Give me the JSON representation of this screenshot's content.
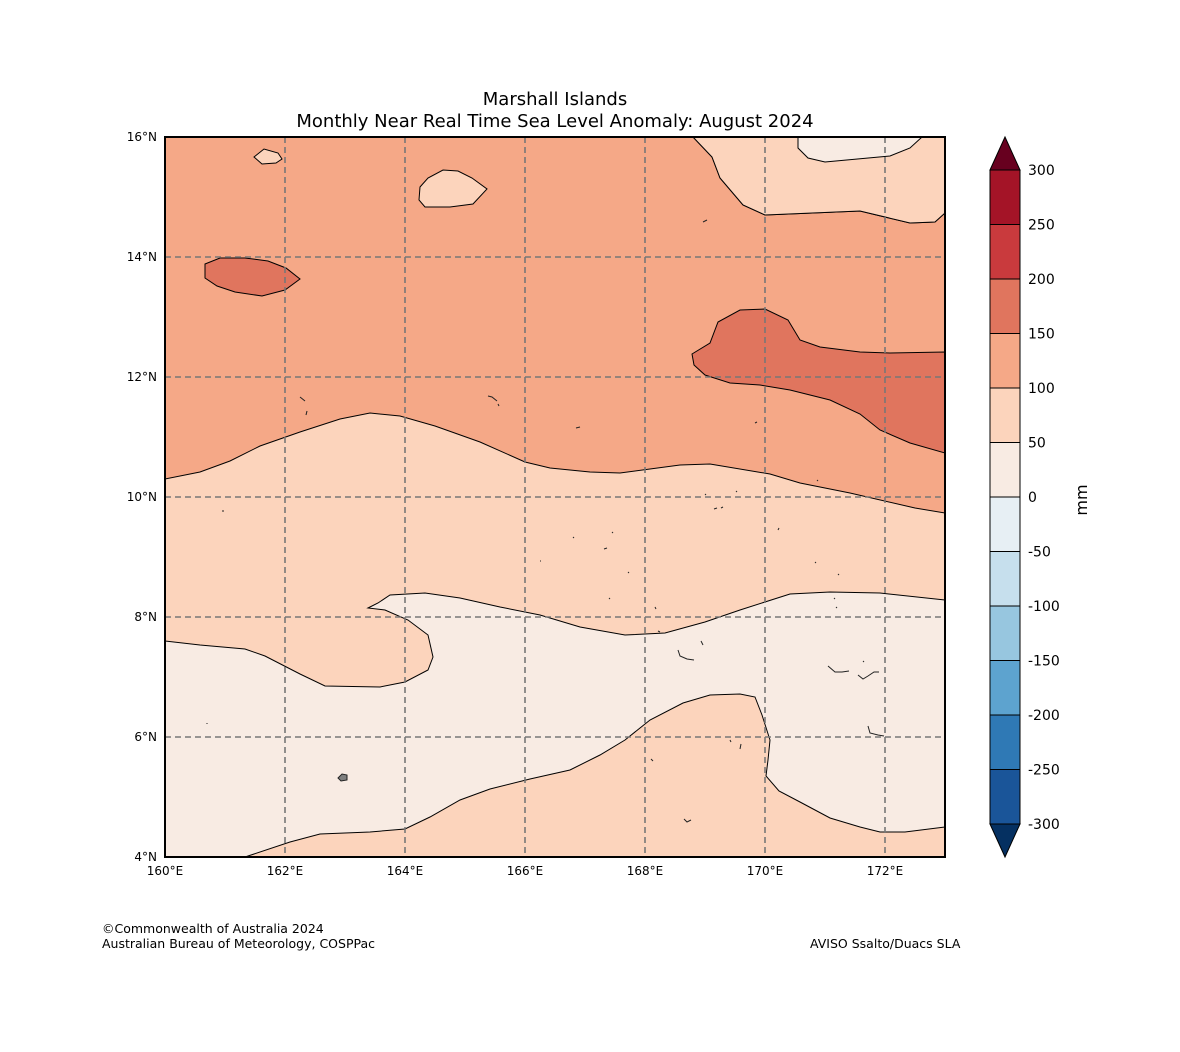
{
  "title": {
    "line1": "Marshall Islands",
    "line2": "Monthly Near Real Time Sea Level Anomaly: August 2024"
  },
  "map": {
    "lon_range": [
      160,
      173
    ],
    "lat_range": [
      4,
      16
    ],
    "x_ticks": [
      {
        "value": 160,
        "label": "160°E"
      },
      {
        "value": 162,
        "label": "162°E"
      },
      {
        "value": 164,
        "label": "164°E"
      },
      {
        "value": 166,
        "label": "166°E"
      },
      {
        "value": 168,
        "label": "168°E"
      },
      {
        "value": 170,
        "label": "170°E"
      },
      {
        "value": 172,
        "label": "172°E"
      }
    ],
    "y_ticks": [
      {
        "value": 4,
        "label": "4°N"
      },
      {
        "value": 6,
        "label": "6°N"
      },
      {
        "value": 8,
        "label": "8°N"
      },
      {
        "value": 10,
        "label": "10°N"
      },
      {
        "value": 12,
        "label": "12°N"
      },
      {
        "value": 14,
        "label": "14°N"
      },
      {
        "value": 16,
        "label": "16°N"
      }
    ],
    "colors": {
      "band_0_50": "#f8ebe3",
      "band_50_100": "#fcd4bc",
      "band_100_150": "#f5a887",
      "band_150_200": "#e0755e",
      "grid": "#777777",
      "land": "#7f7f7f"
    }
  },
  "colorbar": {
    "label": "mm",
    "levels": [
      {
        "value": 300,
        "label": "300"
      },
      {
        "value": 250,
        "label": "250"
      },
      {
        "value": 200,
        "label": "200"
      },
      {
        "value": 150,
        "label": "150"
      },
      {
        "value": 100,
        "label": "100"
      },
      {
        "value": 50,
        "label": "50"
      },
      {
        "value": 0,
        "label": "0"
      },
      {
        "value": -50,
        "label": "-50"
      },
      {
        "value": -100,
        "label": "-100"
      },
      {
        "value": -150,
        "label": "-150"
      },
      {
        "value": -200,
        "label": "-200"
      },
      {
        "value": -250,
        "label": "-250"
      },
      {
        "value": -300,
        "label": "-300"
      }
    ],
    "bands": [
      "#a41427",
      "#c93a3d",
      "#e0755e",
      "#f5a887",
      "#fcd4bc",
      "#f8ebe3",
      "#e7eff4",
      "#c6dfed",
      "#97c6df",
      "#5da3cf",
      "#2f79b5",
      "#1a5599"
    ],
    "extend_top": "#67001f",
    "extend_bottom": "#053061"
  },
  "footer": {
    "copyright": "©Commonwealth of Australia 2024",
    "org": "Australian Bureau of Meteorology, COSPPac",
    "source": "AVISO Ssalto/Duacs SLA"
  }
}
